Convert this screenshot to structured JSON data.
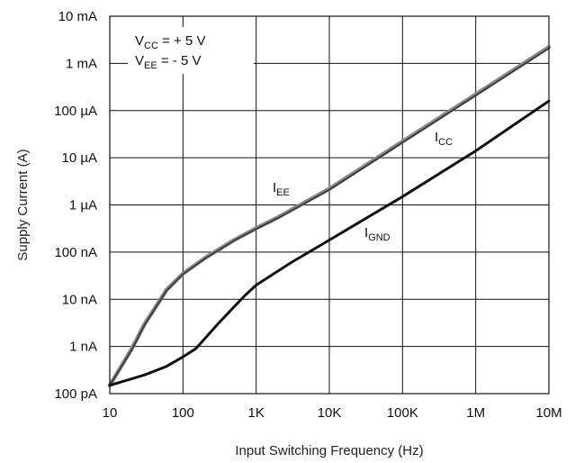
{
  "chart_data": {
    "type": "line",
    "title": "",
    "xlabel": "Input Switching Frequency (Hz)",
    "ylabel": "Supply Current (A)",
    "x_scale": "log",
    "y_scale": "log",
    "xlim": [
      10,
      10000000
    ],
    "ylim": [
      1e-10,
      0.01
    ],
    "grid": true,
    "x_ticks": [
      {
        "value": 10,
        "label": "10"
      },
      {
        "value": 100,
        "label": "100"
      },
      {
        "value": 1000,
        "label": "1K"
      },
      {
        "value": 10000,
        "label": "10K"
      },
      {
        "value": 100000,
        "label": "100K"
      },
      {
        "value": 1000000,
        "label": "1M"
      },
      {
        "value": 10000000,
        "label": "10M"
      }
    ],
    "y_ticks": [
      {
        "value": 0.01,
        "label": "10 mA"
      },
      {
        "value": 0.001,
        "label": "1 mA"
      },
      {
        "value": 0.0001,
        "label": "100 µA"
      },
      {
        "value": 1e-05,
        "label": "10 µA"
      },
      {
        "value": 1e-06,
        "label": "1 µA"
      },
      {
        "value": 1e-07,
        "label": "100 nA"
      },
      {
        "value": 1e-08,
        "label": "10 nA"
      },
      {
        "value": 1e-09,
        "label": "1 nA"
      },
      {
        "value": 1e-10,
        "label": "100 pA"
      }
    ],
    "conditions": [
      {
        "main": "V",
        "sub": "CC",
        "rest": " = + 5 V"
      },
      {
        "main": "V",
        "sub": "EE",
        "rest": " = - 5 V"
      }
    ],
    "series": [
      {
        "key": "icc",
        "label_main": "I",
        "label_sub": "CC",
        "color": "#888888",
        "x": [
          10,
          20,
          30,
          60,
          100,
          200,
          500,
          1000,
          2000,
          10000,
          100000,
          1000000,
          10000000
        ],
        "y": [
          1.5e-10,
          9e-10,
          3e-09,
          1.6e-08,
          3.5e-08,
          7.5e-08,
          1.8e-07,
          3.2e-07,
          5.5e-07,
          2.2e-06,
          2.2e-05,
          0.00022,
          0.0022
        ]
      },
      {
        "key": "iee",
        "label_main": "I",
        "label_sub": "EE",
        "color": "#333333",
        "x": [
          10,
          20,
          30,
          60,
          100,
          200,
          500,
          1000,
          2000,
          10000,
          100000,
          1000000,
          10000000
        ],
        "y": [
          1.5e-10,
          8.5e-10,
          2.9e-09,
          1.55e-08,
          3.4e-08,
          7.3e-08,
          1.75e-07,
          3.1e-07,
          5.3e-07,
          2.1e-06,
          2.1e-05,
          0.00021,
          0.0021
        ]
      },
      {
        "key": "ignd",
        "label_main": "I",
        "label_sub": "GND",
        "color": "#111111",
        "x": [
          10,
          30,
          60,
          100,
          150,
          300,
          700,
          1000,
          3000,
          10000,
          100000,
          1000000,
          10000000
        ],
        "y": [
          1.5e-10,
          2.5e-10,
          3.8e-10,
          6e-10,
          9e-10,
          3e-09,
          1.2e-08,
          2e-08,
          6e-08,
          1.8e-07,
          1.5e-06,
          1.4e-05,
          0.00016
        ]
      }
    ]
  }
}
